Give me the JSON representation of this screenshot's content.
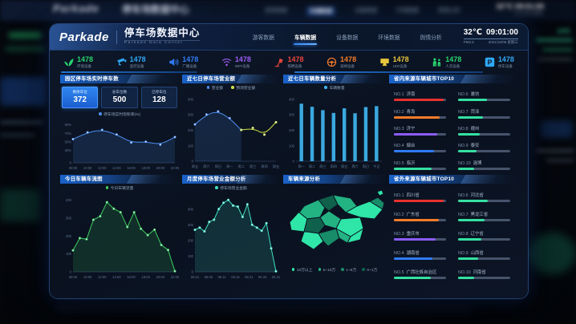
{
  "header": {
    "logo": "Parkade",
    "title": "停车场数据中心",
    "subtitle": "Parkade Data Center",
    "nav": [
      {
        "label": "游客数据",
        "active": false
      },
      {
        "label": "车辆数据",
        "active": true
      },
      {
        "label": "设备数据",
        "active": false
      },
      {
        "label": "环境数据",
        "active": false
      },
      {
        "label": "舆情分析",
        "active": false
      }
    ],
    "temperature": "32℃",
    "time": "09:01:00",
    "pm": "PM2.5",
    "date": "2021/10/06 星期三"
  },
  "stats": [
    {
      "icon": "leaf-icon",
      "value": "1478",
      "label": "环境设备",
      "color": "#27d36d"
    },
    {
      "icon": "cctv-icon",
      "value": "1478",
      "label": "监控设备",
      "color": "#2fa8f5"
    },
    {
      "icon": "speaker-icon",
      "value": "1478",
      "label": "广播设备",
      "color": "#2f7bf5"
    },
    {
      "icon": "wifi-icon",
      "value": "1478",
      "label": "WIFI设备",
      "color": "#9a5cf6"
    },
    {
      "icon": "lamp-icon",
      "value": "1478",
      "label": "照明设备",
      "color": "#e8453c"
    },
    {
      "icon": "steering-wheel-icon",
      "value": "1478",
      "label": "道闸设备",
      "color": "#f57c2a"
    },
    {
      "icon": "led-screen-icon",
      "value": "1478",
      "label": "LED设备",
      "color": "#e8c53c"
    },
    {
      "icon": "people-icon",
      "value": "1478",
      "label": "人流设备",
      "color": "#27d36d"
    },
    {
      "icon": "parking-icon",
      "value": "1478",
      "label": "停车设备",
      "color": "#2fa8f5"
    }
  ],
  "panels": {
    "realtime": {
      "title": "园区停车场实时停车数",
      "boxes": [
        {
          "label": "剩余车位",
          "value": "372",
          "highlight": true
        },
        {
          "label": "总车位数",
          "value": "500",
          "highlight": false
        },
        {
          "label": "已停车位",
          "value": "128",
          "highlight": false
        }
      ]
    },
    "weekly_revenue": {
      "title": "近七日停车场营业额"
    },
    "weekly_vehicles": {
      "title": "近七日车辆数量分析"
    },
    "inner_top10": {
      "title": "省内来源车辆城市TOP10",
      "items": [
        {
          "rank": "NO.1",
          "name": "济南",
          "pct": 95,
          "color": "#e8312f"
        },
        {
          "rank": "NO.2",
          "name": "青岛",
          "pct": 88,
          "color": "#f57c2a"
        },
        {
          "rank": "NO.3",
          "name": "济宁",
          "pct": 82,
          "color": "#8b5cf6"
        },
        {
          "rank": "NO.4",
          "name": "烟台",
          "pct": 77,
          "color": "#2f7bf5"
        },
        {
          "rank": "NO.5",
          "name": "临沂",
          "pct": 72,
          "color": "#35e0a1"
        },
        {
          "rank": "NO.6",
          "name": "潍坊",
          "pct": 55,
          "color": "#35e0a1"
        },
        {
          "rank": "NO.7",
          "name": "菏泽",
          "pct": 48,
          "color": "#35e0a1"
        },
        {
          "rank": "NO.8",
          "name": "德州",
          "pct": 42,
          "color": "#35e0a1"
        },
        {
          "rank": "NO.9",
          "name": "泰安",
          "pct": 36,
          "color": "#35e0a1"
        },
        {
          "rank": "NO.10",
          "name": "淄博",
          "pct": 30,
          "color": "#35e0a1"
        }
      ]
    },
    "today_flow": {
      "title": "今日车辆车流图"
    },
    "monthly_amount": {
      "title": "月度停车场营业金额分析"
    },
    "map": {
      "title": "车辆来源分析",
      "legend": [
        {
          "label": "10万以上",
          "color": "#2fe6a8"
        },
        {
          "label": "5~10万",
          "color": "#23b383"
        },
        {
          "label": "1~5万",
          "color": "#188b68"
        },
        {
          "label": "0~1万",
          "color": "#10614c"
        }
      ]
    },
    "outer_top10": {
      "title": "省外来源车辆城市TOP10",
      "items": [
        {
          "rank": "NO.1",
          "name": "四川省",
          "pct": 95,
          "color": "#e8312f"
        },
        {
          "rank": "NO.2",
          "name": "广东省",
          "pct": 86,
          "color": "#f57c2a"
        },
        {
          "rank": "NO.3",
          "name": "重庆市",
          "pct": 80,
          "color": "#8b5cf6"
        },
        {
          "rank": "NO.4",
          "name": "湖南省",
          "pct": 74,
          "color": "#2f7bf5"
        },
        {
          "rank": "NO.5",
          "name": "广西壮族自治区",
          "pct": 70,
          "color": "#35e0a1"
        },
        {
          "rank": "NO.6",
          "name": "河北省",
          "pct": 56,
          "color": "#35e0a1"
        },
        {
          "rank": "NO.7",
          "name": "黑龙江省",
          "pct": 50,
          "color": "#35e0a1"
        },
        {
          "rank": "NO.8",
          "name": "辽宁省",
          "pct": 44,
          "color": "#35e0a1"
        },
        {
          "rank": "NO.9",
          "name": "山西省",
          "pct": 38,
          "color": "#35e0a1"
        },
        {
          "rank": "NO.10",
          "name": "河南省",
          "pct": 30,
          "color": "#35e0a1"
        }
      ]
    }
  },
  "chart_data": {
    "saturation": {
      "type": "line",
      "smooth": true,
      "max": 95,
      "title": "园区停车场实时停车数",
      "x_labels": [
        "08:00",
        "10:00",
        "12:00",
        "14:00",
        "16:00",
        "18:00",
        "20:00",
        "22:00"
      ],
      "y_labels": [
        "90%",
        "70%",
        "50%",
        "30%",
        "0"
      ],
      "legend": [
        {
          "label": "停车场实时饱和率(%)",
          "color": "#4d8df0"
        }
      ],
      "series": [
        {
          "name": "停车场实时饱和率(%)",
          "color": "#4d8df0",
          "values": [
            56,
            72,
            78,
            67,
            48,
            50,
            43,
            61
          ],
          "area": true,
          "dots": true
        }
      ]
    },
    "weekly_revenue": {
      "type": "line",
      "smooth": true,
      "max": 420,
      "points": 8,
      "title": "近七日停车场营业额",
      "x_labels": [
        "周五",
        "周六",
        "周日",
        "周一",
        "周二",
        "周三",
        "周四",
        "周五"
      ],
      "y_labels": [
        "400",
        "300",
        "200",
        "100",
        "0"
      ],
      "legend": [
        {
          "label": "营业额",
          "color": "#4d8df0"
        },
        {
          "label": "预测营业额",
          "color": "#cfe04a"
        }
      ],
      "series": [
        {
          "name": "营业额",
          "color": "#4d8df0",
          "values": [
            238,
            302,
            322,
            278,
            202
          ],
          "offset": 0,
          "area": true,
          "dots": true
        },
        {
          "name": "预测营业额",
          "color": "#cfe04a",
          "values": [
            202,
            215,
            172,
            252
          ],
          "offset": 4,
          "dots": true
        }
      ]
    },
    "weekly_vehicles": {
      "type": "bar",
      "max": 420,
      "title": "近七日车辆数量分析",
      "x_labels": [
        "周一",
        "周二",
        "周三",
        "周四",
        "周五",
        "周六",
        "周日",
        "今日"
      ],
      "y_labels": [
        "400",
        "300",
        "200",
        "100",
        "0"
      ],
      "legend": [
        {
          "label": "车辆数量",
          "color": "#3fb6f0"
        }
      ],
      "series": [
        {
          "name": "车辆数量",
          "color": "#3fb6f0",
          "values": [
            372,
            352,
            330,
            312,
            342,
            310,
            350,
            356
          ]
        }
      ]
    },
    "today_flow": {
      "type": "area",
      "max": 420,
      "title": "今日车辆车流图",
      "x_labels": [
        "08:00",
        "10:00",
        "12:00",
        "14:00",
        "16:00",
        "18:00",
        "20:00",
        "22:00"
      ],
      "y_labels": [
        "400",
        "300",
        "200",
        "100",
        "0"
      ],
      "legend": [
        {
          "label": "今日车辆流量",
          "color": "#3ecf5e"
        }
      ],
      "series": [
        {
          "name": "今日车辆流量",
          "color": "#3ecf5e",
          "values": [
            120,
            188,
            182,
            290,
            310,
            388,
            352,
            332,
            250,
            332,
            240,
            205,
            235,
            150,
            122,
            4
          ],
          "area": true,
          "dots": true
        }
      ]
    },
    "monthly_amount": {
      "type": "area",
      "max": 480,
      "title": "月度停车场营业金额分析",
      "x_labels": [
        "08.01",
        "08.06",
        "08.11",
        "08.16",
        "08.21",
        "08.26",
        "08.31"
      ],
      "y_labels": [
        "400",
        "300",
        "200",
        "100",
        "0"
      ],
      "legend": [
        {
          "label": "停车场营业金额",
          "color": "#3fe0c0"
        }
      ],
      "series": [
        {
          "name": "停车场营业金额",
          "color": "#3fe0c0",
          "values": [
            268,
            282,
            258,
            318,
            332,
            400,
            440,
            458,
            422,
            415,
            350,
            430,
            300,
            282,
            262,
            310,
            150,
            4
          ],
          "area": true,
          "dots": true
        }
      ]
    }
  }
}
